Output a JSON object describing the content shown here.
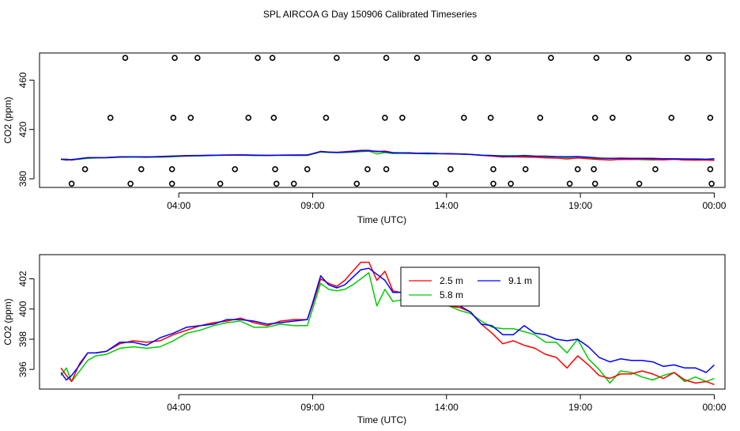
{
  "title": "SPL AIRCOA G  Day 150906  Calibrated Timeseries",
  "chart_data": [
    {
      "type": "scatter+line",
      "id": "top",
      "xlabel": "Time (UTC)",
      "ylabel": "CO2 (ppm)",
      "xlim": [
        -1.2,
        24.4
      ],
      "ylim": [
        373,
        482
      ],
      "x_ticks": [
        4,
        9,
        14,
        19,
        24
      ],
      "x_tick_labels": [
        "04:00",
        "09:00",
        "14:00",
        "19:00",
        "00:00"
      ],
      "y_ticks": [
        380,
        420,
        460
      ],
      "y_tick_labels": [
        "380",
        "420",
        "460"
      ],
      "calibration_points": [
        {
          "y": 478.0,
          "x": [
            2.0,
            3.85,
            4.7,
            6.95,
            7.5,
            9.9,
            11.75,
            12.9,
            15.05,
            15.55,
            17.9,
            19.6,
            20.8,
            23.0,
            23.8
          ]
        },
        {
          "y": 429.5,
          "x": [
            1.45,
            3.8,
            4.45,
            6.6,
            7.55,
            9.5,
            11.7,
            12.35,
            14.65,
            15.65,
            17.5,
            19.55,
            20.2,
            22.4,
            23.85
          ]
        },
        {
          "y": 387.8,
          "x": [
            0.5,
            2.6,
            3.75,
            6.1,
            7.6,
            8.8,
            11.05,
            11.75,
            14.15,
            15.75,
            16.95,
            18.9,
            19.5,
            21.8,
            23.85
          ]
        },
        {
          "y": 376.0,
          "x": [
            0.0,
            2.2,
            3.75,
            5.55,
            7.65,
            8.3,
            10.65,
            13.6,
            15.75,
            16.4,
            18.6,
            19.55,
            21.2,
            23.9
          ]
        }
      ],
      "series": [
        {
          "name": "2.5 m",
          "color": "#ff0000"
        },
        {
          "name": "5.8 m",
          "color": "#00cc00"
        },
        {
          "name": "9.1 m",
          "color": "#0000ff"
        }
      ]
    },
    {
      "type": "line",
      "id": "bottom",
      "xlabel": "Time (UTC)",
      "ylabel": "CO2 (ppm)",
      "xlim": [
        -1.2,
        24.4
      ],
      "ylim": [
        394.7,
        403.6
      ],
      "x_ticks": [
        4,
        9,
        14,
        19,
        24
      ],
      "x_tick_labels": [
        "04:00",
        "09:00",
        "14:00",
        "19:00",
        "00:00"
      ],
      "y_ticks": [
        396,
        398,
        400,
        402
      ],
      "y_tick_labels": [
        "396",
        "398",
        "400",
        "402"
      ],
      "legend": {
        "position": "top-center",
        "entries": [
          "2.5 m",
          "5.8 m",
          "9.1 m"
        ]
      },
      "base_x": [
        -0.4,
        -0.2,
        0.0,
        0.3,
        0.6,
        0.9,
        1.3,
        1.8,
        2.3,
        2.8,
        3.3,
        3.8,
        4.3,
        4.8,
        5.3,
        5.8,
        6.3,
        6.8,
        7.3,
        7.8,
        8.3,
        8.8,
        9.0,
        9.3,
        9.6,
        9.9,
        10.2,
        10.5,
        10.8,
        11.1,
        11.4,
        11.7,
        12.0,
        12.3,
        12.6,
        12.9,
        13.3,
        13.7,
        14.1,
        14.5,
        14.9,
        15.3,
        15.7,
        16.1,
        16.5,
        16.9,
        17.3,
        17.7,
        18.1,
        18.5,
        18.9,
        19.3,
        19.7,
        20.1,
        20.5,
        20.9,
        21.3,
        21.7,
        22.1,
        22.5,
        22.9,
        23.3,
        23.7,
        24.0
      ],
      "base_y": [
        396.0,
        395.9,
        395.6,
        396.3,
        396.9,
        397.1,
        397.2,
        397.6,
        397.8,
        397.6,
        397.9,
        398.2,
        398.6,
        398.8,
        399.0,
        399.2,
        399.3,
        399.1,
        399.0,
        399.1,
        399.2,
        399.3,
        400.3,
        401.9,
        401.5,
        401.3,
        401.6,
        401.9,
        402.2,
        402.5,
        401.4,
        401.7,
        400.9,
        400.9,
        400.7,
        400.6,
        400.5,
        400.4,
        400.3,
        400.1,
        399.8,
        399.2,
        398.8,
        398.5,
        398.4,
        398.6,
        398.3,
        398.2,
        397.6,
        397.3,
        397.8,
        396.9,
        396.4,
        396.0,
        396.6,
        396.2,
        396.3,
        395.9,
        395.9,
        396.1,
        395.8,
        395.8,
        395.6,
        395.9
      ],
      "series": [
        {
          "name": "2.5 m",
          "color": "#ff0000",
          "offsets": [
            0.1,
            -0.3,
            -0.4,
            0.1,
            0.2,
            0.0,
            0.0,
            0.1,
            0.1,
            0.2,
            0.0,
            0.1,
            0.0,
            0.1,
            0.1,
            0.0,
            0.1,
            0.0,
            -0.1,
            0.1,
            0.1,
            0.0,
            0.0,
            0.1,
            0.2,
            0.2,
            0.3,
            0.6,
            0.9,
            0.6,
            0.5,
            0.8,
            0.3,
            0.2,
            0.1,
            0.0,
            0.2,
            0.0,
            -0.1,
            0.0,
            0.0,
            -0.2,
            -0.4,
            -0.8,
            -0.5,
            -1.0,
            -0.9,
            -1.2,
            -0.8,
            -1.2,
            -0.9,
            -0.6,
            -0.8,
            -0.6,
            -0.9,
            -0.5,
            -0.4,
            -0.2,
            -0.5,
            -0.3,
            -0.5,
            -0.7,
            -0.4,
            -0.9
          ]
        },
        {
          "name": "5.8 m",
          "color": "#00cc00",
          "offsets": [
            -0.4,
            0.2,
            -0.4,
            -0.4,
            -0.3,
            -0.2,
            -0.2,
            -0.2,
            -0.3,
            -0.2,
            -0.4,
            -0.3,
            -0.2,
            -0.2,
            -0.1,
            -0.1,
            -0.1,
            -0.3,
            -0.2,
            -0.1,
            -0.3,
            -0.4,
            -0.3,
            -0.2,
            -0.2,
            -0.1,
            -0.3,
            -0.3,
            -0.2,
            -0.1,
            -1.2,
            -0.4,
            -0.4,
            -0.3,
            -0.2,
            -0.1,
            -0.3,
            -0.1,
            -0.1,
            -0.2,
            -0.1,
            0.0,
            0.0,
            0.2,
            0.3,
            -0.1,
            0.0,
            -0.4,
            0.2,
            -0.2,
            0.2,
            -0.2,
            -0.4,
            -0.9,
            -0.7,
            -0.4,
            -0.8,
            -0.6,
            -0.3,
            -0.3,
            -0.6,
            -0.3,
            -0.4,
            -0.5
          ]
        },
        {
          "name": "9.1 m",
          "color": "#0000ff",
          "offsets": [
            -0.2,
            -0.6,
            0.0,
            0.0,
            0.2,
            0.0,
            0.0,
            0.2,
            0.0,
            0.0,
            0.2,
            0.2,
            0.2,
            0.1,
            0.0,
            0.1,
            0.0,
            0.1,
            0.0,
            0.0,
            0.0,
            0.0,
            0.1,
            0.3,
            0.1,
            0.1,
            0.0,
            0.2,
            0.4,
            0.2,
            0.9,
            0.2,
            0.2,
            0.2,
            0.3,
            0.1,
            0.3,
            0.1,
            0.1,
            0.1,
            0.0,
            -0.2,
            0.1,
            -0.2,
            -0.1,
            0.3,
            0.1,
            0.1,
            0.4,
            0.6,
            0.2,
            0.6,
            0.4,
            0.5,
            0.1,
            0.4,
            0.3,
            0.6,
            0.3,
            0.2,
            0.3,
            0.3,
            0.2,
            0.4
          ]
        }
      ]
    }
  ]
}
